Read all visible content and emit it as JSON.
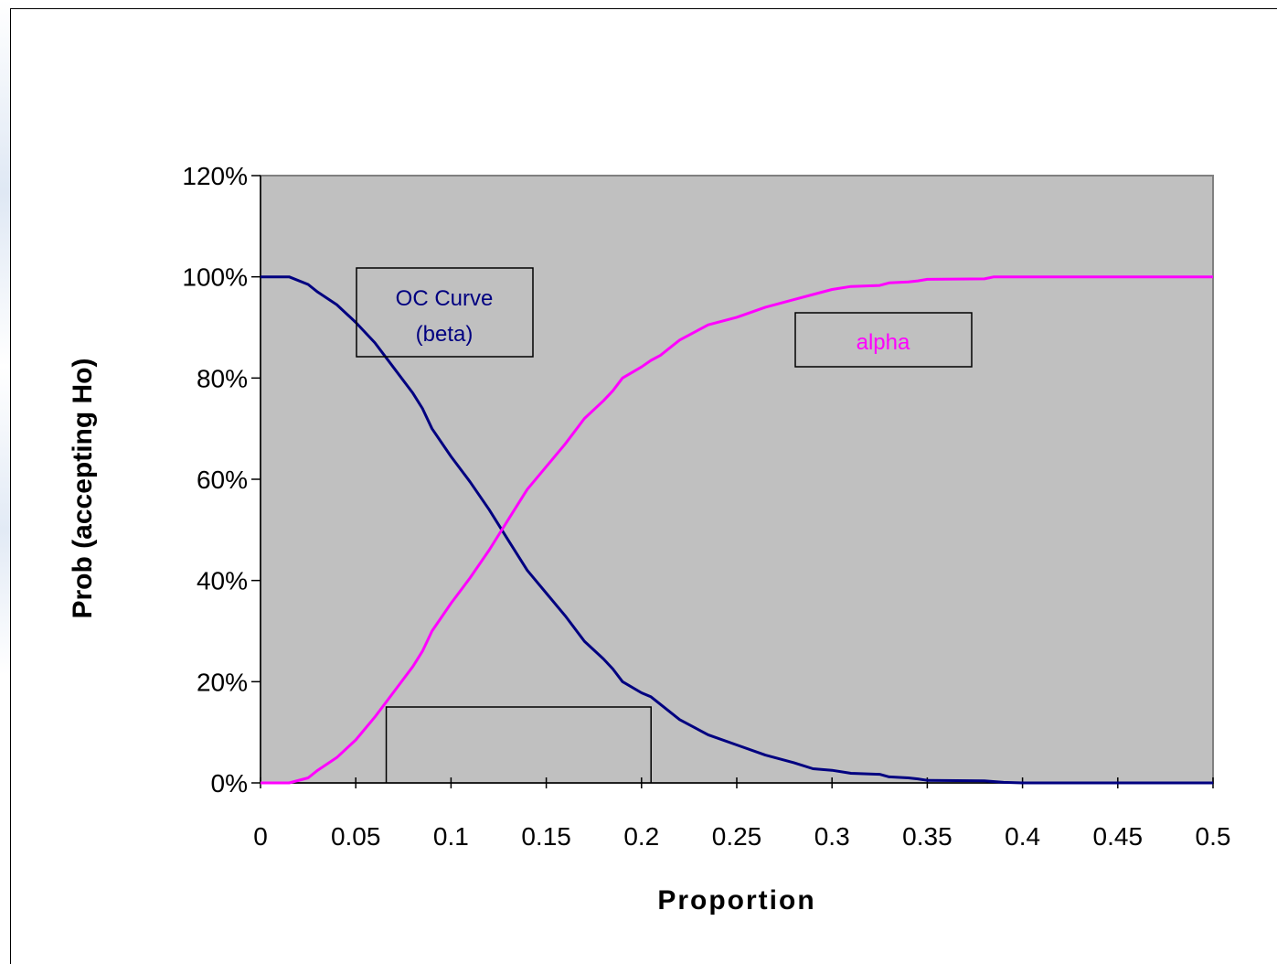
{
  "chart_data": {
    "type": "line",
    "title": "",
    "xlabel": "Proportion",
    "ylabel": "Prob (accepting Ho)",
    "xlim": [
      0,
      0.5
    ],
    "ylim": [
      0,
      1.2
    ],
    "x_ticks": [
      "0",
      "0.05",
      "0.1",
      "0.15",
      "0.2",
      "0.25",
      "0.3",
      "0.35",
      "0.4",
      "0.45",
      "0.5"
    ],
    "y_ticks": [
      "0%",
      "20%",
      "40%",
      "60%",
      "80%",
      "100%",
      "120%"
    ],
    "x_tick_values": [
      0,
      0.05,
      0.1,
      0.15,
      0.2,
      0.25,
      0.3,
      0.35,
      0.4,
      0.45,
      0.5
    ],
    "y_tick_values": [
      0,
      0.2,
      0.4,
      0.6,
      0.8,
      1.0,
      1.2
    ],
    "plot_background": "#c0c0c0",
    "grid": false,
    "legend": "none",
    "series": [
      {
        "name": "OC Curve (beta)",
        "color": "#000080",
        "x": [
          0,
          0.015,
          0.025,
          0.03,
          0.04,
          0.05,
          0.06,
          0.07,
          0.08,
          0.085,
          0.09,
          0.1,
          0.11,
          0.12,
          0.13,
          0.14,
          0.15,
          0.16,
          0.17,
          0.18,
          0.185,
          0.19,
          0.2,
          0.205,
          0.21,
          0.22,
          0.235,
          0.25,
          0.265,
          0.28,
          0.29,
          0.3,
          0.31,
          0.325,
          0.33,
          0.34,
          0.345,
          0.35,
          0.38,
          0.39,
          0.4,
          0.5
        ],
        "y": [
          1.0,
          1.0,
          0.985,
          0.97,
          0.945,
          0.91,
          0.87,
          0.82,
          0.77,
          0.74,
          0.7,
          0.645,
          0.595,
          0.54,
          0.48,
          0.42,
          0.375,
          0.33,
          0.28,
          0.245,
          0.225,
          0.2,
          0.178,
          0.17,
          0.155,
          0.125,
          0.095,
          0.075,
          0.055,
          0.04,
          0.028,
          0.025,
          0.019,
          0.017,
          0.012,
          0.01,
          0.008,
          0.005,
          0.004,
          0.001,
          0.0,
          0.0
        ]
      },
      {
        "name": "alpha",
        "color": "#ff00ff",
        "x": [
          0,
          0.015,
          0.025,
          0.03,
          0.04,
          0.05,
          0.06,
          0.07,
          0.08,
          0.085,
          0.09,
          0.1,
          0.11,
          0.12,
          0.13,
          0.14,
          0.15,
          0.16,
          0.17,
          0.18,
          0.185,
          0.19,
          0.2,
          0.205,
          0.21,
          0.22,
          0.235,
          0.25,
          0.265,
          0.28,
          0.29,
          0.3,
          0.31,
          0.325,
          0.33,
          0.34,
          0.345,
          0.35,
          0.38,
          0.385,
          0.4,
          0.5
        ],
        "y": [
          0.0,
          0.0,
          0.01,
          0.025,
          0.05,
          0.085,
          0.13,
          0.18,
          0.23,
          0.26,
          0.3,
          0.355,
          0.405,
          0.46,
          0.52,
          0.58,
          0.625,
          0.67,
          0.72,
          0.755,
          0.775,
          0.8,
          0.822,
          0.835,
          0.845,
          0.875,
          0.905,
          0.92,
          0.94,
          0.955,
          0.965,
          0.975,
          0.981,
          0.983,
          0.988,
          0.99,
          0.992,
          0.995,
          0.996,
          1.0,
          1.0,
          1.0
        ]
      }
    ],
    "annotations": {
      "oc_box": {
        "line1": "OC Curve",
        "line2": "(beta)",
        "color": "#000080"
      },
      "alpha_box": {
        "text": "alpha",
        "color": "#ff00ff"
      },
      "empty_box": {
        "x_range": [
          0.066,
          0.205
        ],
        "y_range": [
          0,
          0.15
        ]
      }
    }
  }
}
